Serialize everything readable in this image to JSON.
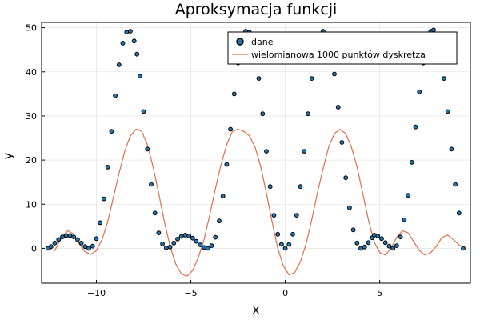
{
  "chart_data": {
    "type": "line",
    "title": "Aproksymacja funkcji",
    "xlabel": "x",
    "ylabel": "y",
    "xlim": [
      -12.9,
      9.8
    ],
    "ylim": [
      -7.9,
      51.2
    ],
    "xticks": [
      -10,
      -5,
      0,
      5
    ],
    "xtick_labels": [
      "−10",
      "−5",
      "0",
      "5"
    ],
    "yticks": [
      0,
      10,
      20,
      30,
      40,
      50
    ],
    "ytick_labels": [
      "0",
      "10",
      "20",
      "30",
      "40",
      "50"
    ],
    "grid": true,
    "legend_position": "top-right",
    "series": [
      {
        "name": "dane",
        "kind": "scatter",
        "color": "#1f77b4",
        "x": [
          -12.57,
          -12.4,
          -12.2,
          -12.0,
          -11.8,
          -11.6,
          -11.4,
          -11.2,
          -11.0,
          -10.8,
          -10.6,
          -10.4,
          -10.2,
          -10.0,
          -9.8,
          -9.6,
          -9.4,
          -9.2,
          -9.0,
          -8.8,
          -8.6,
          -8.4,
          -8.2,
          -8.0,
          -7.85,
          -7.7,
          -7.5,
          -7.3,
          -7.1,
          -6.9,
          -6.7,
          -6.5,
          -6.3,
          -6.1,
          -5.9,
          -5.7,
          -5.5,
          -5.3,
          -5.1,
          -4.9,
          -4.71,
          -4.5,
          -4.3,
          -4.1,
          -3.9,
          -3.7,
          -3.5,
          -3.3,
          -3.1,
          -2.9,
          -2.7,
          -2.5,
          -2.3,
          -2.1,
          -1.9,
          -1.7,
          -1.57,
          -1.4,
          -1.2,
          -1.0,
          -0.8,
          -0.6,
          -0.4,
          -0.2,
          0.0,
          0.2,
          0.4,
          0.6,
          0.8,
          1.0,
          1.2,
          1.4,
          1.57,
          1.8,
          2.0,
          2.2,
          2.4,
          2.6,
          2.8,
          3.0,
          3.2,
          3.4,
          3.6,
          3.8,
          4.0,
          4.2,
          4.4,
          4.6,
          4.71,
          4.9,
          5.1,
          5.3,
          5.5,
          5.7,
          5.9,
          6.1,
          6.3,
          6.5,
          6.7,
          6.9,
          7.1,
          7.3,
          7.5,
          7.7,
          7.85,
          8.0,
          8.2,
          8.4,
          8.6,
          8.8,
          9.0,
          9.2,
          9.42
        ],
        "y": [
          0.0,
          0.4,
          1.2,
          2.0,
          2.6,
          2.9,
          2.9,
          2.6,
          2.0,
          1.2,
          0.4,
          0.0,
          0.5,
          2.2,
          5.8,
          11.2,
          18.4,
          26.5,
          34.6,
          41.6,
          46.5,
          49.0,
          49.2,
          47.0,
          44.0,
          39.0,
          31.0,
          22.5,
          14.5,
          8.0,
          3.5,
          1.0,
          0.1,
          0.3,
          1.2,
          2.1,
          2.7,
          3.0,
          2.8,
          2.3,
          1.6,
          0.8,
          0.2,
          0.0,
          0.6,
          2.5,
          6.2,
          11.8,
          19.0,
          27.0,
          35.0,
          42.0,
          46.8,
          49.2,
          49.0,
          46.8,
          44.0,
          38.5,
          30.5,
          22.0,
          14.0,
          7.5,
          3.2,
          0.9,
          0.0,
          0.9,
          3.2,
          7.5,
          14.0,
          22.0,
          30.5,
          38.5,
          44.0,
          47.5,
          49.2,
          48.5,
          45.0,
          39.5,
          32.0,
          24.0,
          16.0,
          9.2,
          4.2,
          1.2,
          0.0,
          0.3,
          1.3,
          2.4,
          3.0,
          2.8,
          2.2,
          1.3,
          0.5,
          0.0,
          0.6,
          2.6,
          6.5,
          12.0,
          19.5,
          27.5,
          35.5,
          42.0,
          46.8,
          49.2,
          49.5,
          48.0,
          44.5,
          38.5,
          31.0,
          22.5,
          14.5,
          8.0,
          0.0
        ]
      },
      {
        "name": "wielomianowa 1000 punktów dyskretza",
        "kind": "line",
        "color": "#e26f46",
        "x": [
          -12.6,
          -12.2,
          -11.8,
          -11.5,
          -11.2,
          -10.9,
          -10.6,
          -10.3,
          -10.0,
          -9.7,
          -9.4,
          -9.1,
          -8.8,
          -8.5,
          -8.2,
          -7.9,
          -7.6,
          -7.3,
          -7.0,
          -6.7,
          -6.4,
          -6.1,
          -5.8,
          -5.5,
          -5.2,
          -4.9,
          -4.6,
          -4.3,
          -4.0,
          -3.7,
          -3.4,
          -3.1,
          -2.8,
          -2.5,
          -2.2,
          -1.9,
          -1.6,
          -1.3,
          -1.0,
          -0.7,
          -0.4,
          -0.1,
          0.2,
          0.5,
          0.8,
          1.1,
          1.4,
          1.7,
          2.0,
          2.3,
          2.6,
          2.9,
          3.2,
          3.5,
          3.8,
          4.1,
          4.4,
          4.7,
          5.0,
          5.3,
          5.6,
          5.9,
          6.2,
          6.5,
          6.8,
          7.1,
          7.4,
          7.7,
          8.0,
          8.3,
          8.6,
          8.9,
          9.2,
          9.42
        ],
        "y": [
          0.0,
          -0.5,
          2.8,
          4.0,
          3.2,
          1.0,
          -0.8,
          -1.4,
          -0.5,
          2.0,
          6.0,
          11.5,
          17.0,
          22.0,
          25.5,
          27.0,
          26.5,
          23.5,
          18.5,
          12.5,
          6.0,
          0.5,
          -3.5,
          -5.8,
          -6.3,
          -5.0,
          -2.0,
          2.0,
          7.5,
          13.5,
          19.0,
          23.5,
          26.5,
          27.0,
          26.5,
          25.5,
          23.0,
          18.5,
          12.5,
          6.0,
          0.0,
          -4.0,
          -6.0,
          -5.5,
          -3.0,
          1.0,
          6.5,
          12.5,
          18.0,
          23.0,
          26.0,
          27.0,
          26.0,
          23.0,
          18.5,
          12.5,
          6.5,
          1.5,
          -1.0,
          -1.5,
          0.0,
          2.5,
          4.0,
          3.5,
          1.5,
          -0.5,
          -1.5,
          -1.0,
          0.5,
          2.5,
          3.0,
          2.0,
          0.8,
          0.3
        ]
      }
    ]
  }
}
